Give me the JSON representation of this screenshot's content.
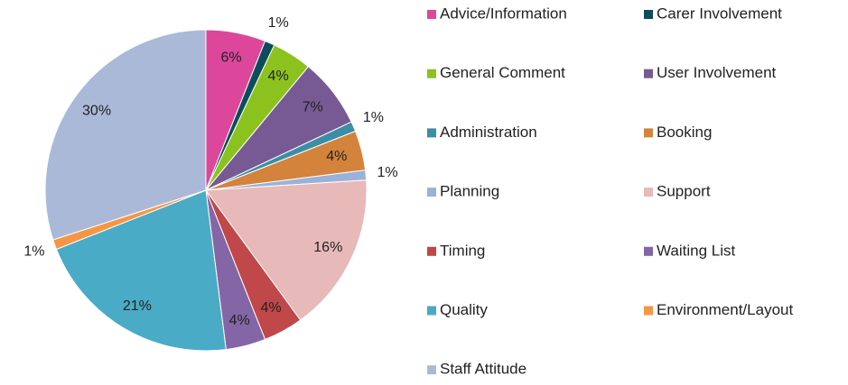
{
  "chart_data": {
    "type": "pie",
    "categories": [
      "Advice/Information",
      "Carer Involvement",
      "General Comment",
      "User Involvement",
      "Administration",
      "Booking",
      "Planning",
      "Support",
      "Timing",
      "Waiting List",
      "Quality",
      "Environment/Layout",
      "Staff Attitude"
    ],
    "values": [
      6,
      1,
      4,
      7,
      1,
      4,
      1,
      16,
      4,
      4,
      21,
      1,
      30
    ],
    "value_labels": [
      "6%",
      "1%",
      "4%",
      "7%",
      "1%",
      "4%",
      "1%",
      "16%",
      "4%",
      "4%",
      "21%",
      "1%",
      "30%"
    ],
    "colors": [
      "#dc479c",
      "#0d4d5b",
      "#8cc21e",
      "#775a93",
      "#3b8ea5",
      "#d3833c",
      "#9cb1d7",
      "#e7b9b8",
      "#c0474a",
      "#8466a6",
      "#49abc6",
      "#f59646",
      "#abb9d8"
    ],
    "legend": "right"
  }
}
